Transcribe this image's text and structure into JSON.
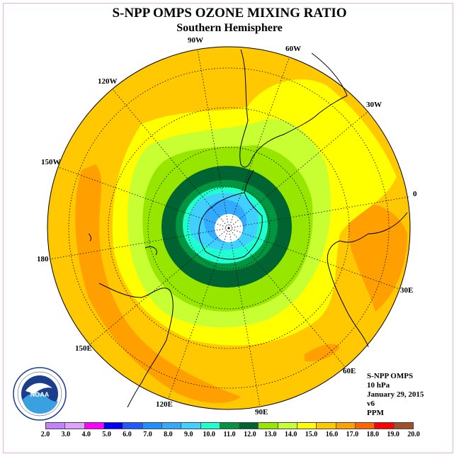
{
  "title": "S-NPP OMPS OZONE MIXING RATIO",
  "subtitle": "Southern Hemisphere",
  "longitude_labels": [
    "90W",
    "60W",
    "30W",
    "0",
    "30E",
    "60E",
    "90E",
    "120E",
    "150E",
    "180",
    "150W",
    "120W"
  ],
  "info": {
    "line1": "S-NPP OMPS",
    "line2": "10 hPa",
    "line3": "January 29, 2015",
    "line4": "v6",
    "line5": "PPM"
  },
  "colorbar": {
    "labels": [
      "2.0",
      "3.0",
      "4.0",
      "5.0",
      "6.0",
      "7.0",
      "8.0",
      "9.0",
      "10.0",
      "11.0",
      "12.0",
      "13.0",
      "14.0",
      "15.0",
      "16.0",
      "17.0",
      "18.0",
      "19.0",
      "20.0"
    ],
    "colors": [
      "#c080ff",
      "#e0a0ff",
      "#ff00ff",
      "#0000ff",
      "#1e5aff",
      "#1e90ff",
      "#32aaff",
      "#40d0ff",
      "#20ffd0",
      "#009640",
      "#006432",
      "#96e600",
      "#c8ff32",
      "#ffff00",
      "#ffc800",
      "#ffa000",
      "#ff6400",
      "#ff0000",
      "#a05028"
    ]
  },
  "logo": {
    "name": "NOAA",
    "ring_text": "NATIONAL OCEANIC AND ATMOSPHERIC ADMINISTRATION - U.S. DEPARTMENT OF COMMERCE"
  },
  "field": {
    "units": "PPM",
    "pressure_level": "10 hPa",
    "min_contour_ppm": 9.0,
    "max_contour_ppm": 17.0,
    "pole_center_value": "below 9.0",
    "rings_from_pole": [
      {
        "band": "9.0-10.0",
        "color_name": "cyan"
      },
      {
        "band": "10.0-11.0",
        "color_name": "green"
      },
      {
        "band": "11.0-12.0",
        "color_name": "dark green"
      },
      {
        "band": "12.0-13.0",
        "color_name": "light green"
      },
      {
        "band": "13.0-14.0",
        "color_name": "yellow-green"
      },
      {
        "band": "14.0-15.0",
        "color_name": "yellow"
      },
      {
        "band": "15.0-16.0",
        "color_name": "gold"
      },
      {
        "band": "16.0-17.0",
        "color_name": "orange"
      }
    ]
  }
}
